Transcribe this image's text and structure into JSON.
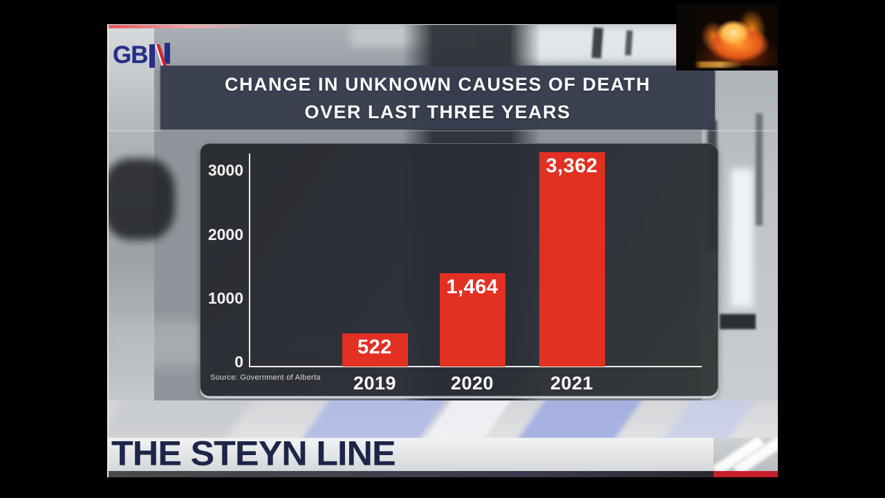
{
  "brand": {
    "gb": "GB"
  },
  "title_banner": {
    "line1": "CHANGE IN UNKNOWN CAUSES OF DEATH",
    "line2": "OVER LAST THREE YEARS"
  },
  "chart_data": {
    "type": "bar",
    "title": "CHANGE IN UNKNOWN CAUSES OF DEATH OVER LAST THREE YEARS",
    "categories": [
      "2019",
      "2020",
      "2021"
    ],
    "values": [
      522,
      1464,
      3362
    ],
    "value_labels": [
      "522",
      "1,464",
      "3,362"
    ],
    "y_ticks": [
      0,
      1000,
      2000,
      3000
    ],
    "y_tick_labels": [
      "0",
      "1000",
      "2000",
      "3000"
    ],
    "ylim": [
      0,
      3400
    ],
    "xlabel": "",
    "ylabel": "",
    "grid": false,
    "legend_position": "none",
    "bar_color": "#e23023",
    "value_label_position": "inside-top",
    "source": "Source: Government of Alberta"
  },
  "lower_third": {
    "title": "THE STEYN LINE"
  },
  "colors": {
    "bar_red": "#e23023",
    "title_banner_bg": "#383e4e",
    "lower_third_text": "#1d2548",
    "lower_third_red": "#c9202c",
    "logo_navy": "#252e85",
    "logo_red": "#cf2433"
  }
}
